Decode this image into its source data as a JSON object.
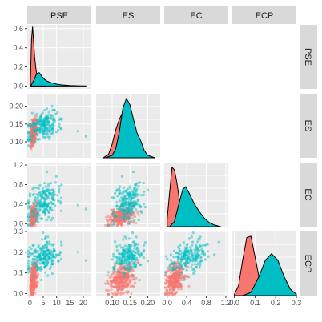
{
  "chart_data": {
    "type": "scatter-matrix",
    "variables": [
      "PSE",
      "ES",
      "EC",
      "ECP"
    ],
    "groups": [
      {
        "color": "#F8766D"
      },
      {
        "color": "#00BFC4"
      }
    ],
    "axes": {
      "PSE": {
        "range": [
          -1,
          23
        ],
        "ticks": [
          0,
          5,
          10,
          15,
          20
        ],
        "density_ticks": [
          0.0,
          0.2,
          0.4,
          0.6
        ],
        "density_range": [
          -0.03,
          0.64
        ]
      },
      "ES": {
        "range": [
          0.055,
          0.235
        ],
        "ticks": [
          0.1,
          0.15,
          0.2
        ],
        "tick_labels": [
          "0.10",
          "0.15",
          "0.20"
        ],
        "row_ticks": [
          0.1,
          0.15,
          0.2
        ],
        "row_tick_labels": [
          "0.10",
          "0.15",
          "0.20"
        ]
      },
      "EC": {
        "range": [
          -0.06,
          1.25
        ],
        "ticks": [
          0.0,
          0.4,
          0.8,
          1.2
        ],
        "tick_labels": [
          "0.0",
          "0.4",
          "0.8",
          "1.2"
        ]
      },
      "ECP": {
        "range": [
          -0.01,
          0.3
        ],
        "ticks": [
          0.0,
          0.1,
          0.2,
          0.3
        ],
        "tick_labels": [
          "0.0",
          "0.1",
          "0.2",
          "0.3"
        ]
      }
    },
    "densities": {
      "PSE": [
        {
          "group": 0,
          "x": [
            0.2,
            0.6,
            1.0,
            1.4,
            1.8,
            2.2,
            2.6,
            3.0,
            3.5,
            4.0,
            5.0,
            6.0
          ],
          "y": [
            0.05,
            0.48,
            0.62,
            0.46,
            0.3,
            0.19,
            0.11,
            0.06,
            0.03,
            0.015,
            0.004,
            0.0
          ]
        },
        {
          "group": 1,
          "x": [
            0.5,
            1.5,
            2.5,
            3.5,
            4.5,
            5.5,
            6.5,
            8.0,
            10.0,
            12.0,
            15.0,
            18.0,
            21.0
          ],
          "y": [
            0.01,
            0.06,
            0.13,
            0.14,
            0.1,
            0.07,
            0.05,
            0.035,
            0.02,
            0.012,
            0.006,
            0.003,
            0.001
          ]
        }
      ],
      "ES": [
        {
          "group": 0,
          "x": [
            0.075,
            0.09,
            0.1,
            0.11,
            0.12,
            0.13,
            0.14,
            0.15,
            0.16,
            0.17,
            0.18
          ],
          "y": [
            0.0,
            0.06,
            0.22,
            0.45,
            0.62,
            0.74,
            0.58,
            0.32,
            0.12,
            0.03,
            0.0
          ]
        },
        {
          "group": 1,
          "x": [
            0.08,
            0.1,
            0.11,
            0.12,
            0.13,
            0.14,
            0.15,
            0.16,
            0.17,
            0.18,
            0.19,
            0.2,
            0.22
          ],
          "y": [
            0.0,
            0.04,
            0.14,
            0.42,
            0.8,
            0.96,
            0.86,
            0.62,
            0.4,
            0.28,
            0.12,
            0.04,
            0.0
          ]
        }
      ],
      "EC": [
        {
          "group": 0,
          "x": [
            0.0,
            0.05,
            0.1,
            0.15,
            0.2,
            0.25,
            0.3,
            0.4,
            0.5,
            0.6
          ],
          "y": [
            0.12,
            0.52,
            0.92,
            0.88,
            0.68,
            0.42,
            0.24,
            0.08,
            0.02,
            0.0
          ]
        },
        {
          "group": 1,
          "x": [
            0.05,
            0.15,
            0.25,
            0.32,
            0.38,
            0.45,
            0.55,
            0.65,
            0.75,
            0.85,
            0.95,
            1.1
          ],
          "y": [
            0.0,
            0.08,
            0.38,
            0.58,
            0.62,
            0.52,
            0.36,
            0.24,
            0.14,
            0.07,
            0.03,
            0.0
          ]
        }
      ],
      "ECP": [
        {
          "group": 0,
          "x": [
            0.0,
            0.02,
            0.04,
            0.06,
            0.08,
            0.1,
            0.12,
            0.14,
            0.16
          ],
          "y": [
            0.02,
            0.15,
            0.55,
            0.9,
            0.92,
            0.6,
            0.28,
            0.08,
            0.0
          ]
        },
        {
          "group": 1,
          "x": [
            0.04,
            0.08,
            0.12,
            0.15,
            0.18,
            0.21,
            0.24,
            0.27,
            0.3
          ],
          "y": [
            0.0,
            0.05,
            0.3,
            0.55,
            0.65,
            0.55,
            0.3,
            0.1,
            0.02
          ]
        }
      ]
    },
    "scatter_centers": [
      {
        "group": 0,
        "PSE": 1.2,
        "ES": 0.125,
        "EC": 0.15,
        "ECP": 0.07,
        "spread": {
          "PSE": 0.7,
          "ES": 0.018,
          "EC": 0.1,
          "ECP": 0.04
        },
        "n": 320
      },
      {
        "group": 1,
        "PSE": 5.0,
        "ES": 0.145,
        "EC": 0.45,
        "ECP": 0.18,
        "spread": {
          "PSE": 3.0,
          "ES": 0.02,
          "EC": 0.2,
          "ECP": 0.04
        },
        "n": 200
      }
    ],
    "outliers": [
      {
        "group": 1,
        "PSE": 18.0,
        "ES": 0.13,
        "EC": 0.38,
        "ECP": 0.2
      },
      {
        "group": 1,
        "PSE": 21.0,
        "ES": 0.115,
        "EC": 0.3,
        "ECP": 0.16
      }
    ],
    "grid": true,
    "legend": "none"
  }
}
